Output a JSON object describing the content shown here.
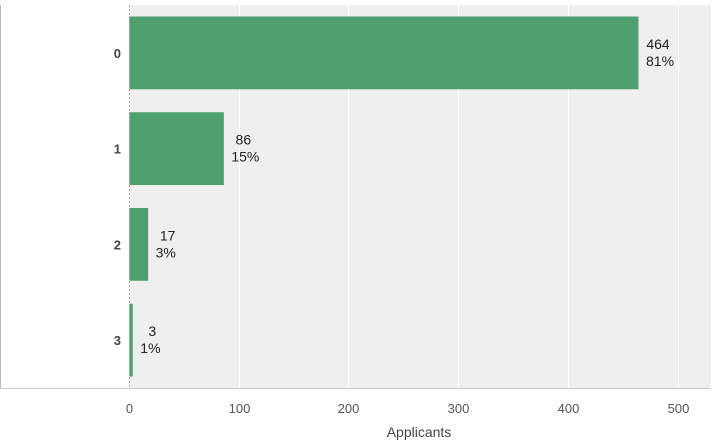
{
  "chart_data": {
    "type": "bar",
    "orientation": "horizontal",
    "categories": [
      "0",
      "1",
      "2",
      "3"
    ],
    "values": [
      464,
      86,
      17,
      3
    ],
    "percent_labels": [
      "81%",
      "15%",
      "3%",
      "1%"
    ],
    "count_labels": [
      "464",
      "86",
      "17",
      "3"
    ],
    "xlabel": "Applicants",
    "ylabel": "",
    "xlim": [
      0,
      500
    ],
    "xticks": [
      "0",
      "100",
      "200",
      "300",
      "400",
      "500"
    ],
    "grid": true,
    "bar_color": "#4f9f6f",
    "plot_background": "#efefef",
    "grid_color": "#ffffff"
  }
}
